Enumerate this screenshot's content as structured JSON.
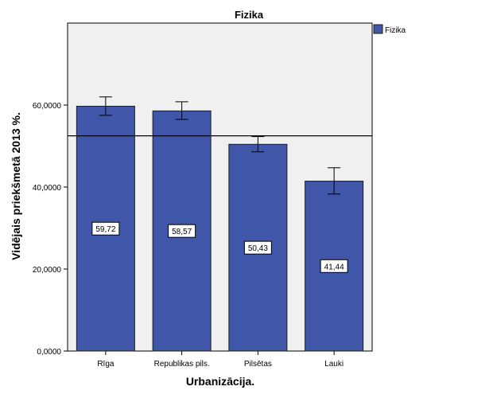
{
  "chart_data": {
    "type": "bar",
    "title": "Fizika",
    "xlabel": "Urbanizācija.",
    "ylabel": "Vidējais priekšmetā 2013 %.",
    "categories": [
      "Rīga",
      "Republikas pils.",
      "Pilsētas",
      "Lauki"
    ],
    "series": [
      {
        "name": "Fizika",
        "values": [
          59.72,
          58.57,
          50.43,
          41.44
        ],
        "value_labels": [
          "59,72",
          "58,57",
          "50,43",
          "41,44"
        ],
        "error_low": [
          57.5,
          56.5,
          48.6,
          38.3
        ],
        "error_high": [
          62.0,
          60.8,
          52.3,
          44.7
        ]
      }
    ],
    "ylim": [
      0,
      80
    ],
    "yticks": [
      0,
      20,
      40,
      60
    ],
    "ytick_labels": [
      "0,0000",
      "20,0000",
      "40,0000",
      "60,0000"
    ],
    "reference_line": 52.5,
    "legend_position": "top-right",
    "colors": {
      "bar": "#3f56a9",
      "bar_stroke": "#1c1c1c",
      "plot_background": "#f0f0f0",
      "error_bar": "#000000"
    }
  }
}
